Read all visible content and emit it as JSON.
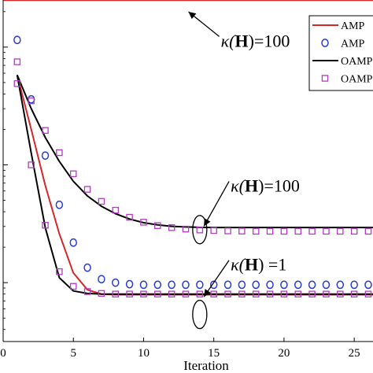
{
  "chart_data": {
    "type": "line",
    "title": "",
    "xlabel": "Iteration",
    "ylabel": "",
    "xlim": [
      0,
      27
    ],
    "ylim_log10": [
      -2.5,
      0.4
    ],
    "log_y": true,
    "x_ticks": [
      0,
      5,
      10,
      15,
      20,
      25
    ],
    "x_tick_labels": [
      "0",
      "5",
      "10",
      "15",
      "20",
      "25"
    ],
    "grid": false,
    "legend_position": "top-right",
    "legend": [
      {
        "label": "AMP",
        "style": "line",
        "color": "#d62728"
      },
      {
        "label": "AMP",
        "style": "circle",
        "color": "#2a3bd6"
      },
      {
        "label": "OAMP",
        "style": "line",
        "color": "#000000"
      },
      {
        "label": "OAMP",
        "style": "square",
        "color": "#b03cc0"
      }
    ],
    "annotations": [
      {
        "prefix": "κ(",
        "matrix": "H",
        "suffix": ")=100",
        "x": 15.5,
        "y_log10": 0.05,
        "pointer": {
          "x": 13.2,
          "y_log10": 0.3
        }
      },
      {
        "prefix": "κ(",
        "matrix": "H",
        "suffix": ")=100",
        "x": 16.2,
        "y_log10": -1.18,
        "pointer": {
          "x": 14.3,
          "y_log10": -1.52
        },
        "ellipse": {
          "x": 14,
          "y_log10": -1.55
        }
      },
      {
        "prefix": "κ(",
        "matrix": "H",
        "suffix": ") =1",
        "x": 16.2,
        "y_log10": -1.85,
        "pointer": {
          "x": 14.3,
          "y_log10": -2.12
        },
        "ellipse": {
          "x": 14,
          "y_log10": -2.27
        }
      }
    ],
    "series": [
      {
        "name": "AMP",
        "style": "line",
        "color": "#d62728",
        "x": [
          0,
          27
        ],
        "y": [
          2.5,
          2.5
        ]
      },
      {
        "name": "AMP",
        "style": "line",
        "color": "#d62728",
        "x": [
          1,
          2,
          3,
          4,
          5,
          6,
          7,
          8,
          9,
          10,
          11,
          12,
          13,
          14,
          15,
          16,
          17,
          18,
          19,
          20,
          21,
          22,
          23,
          24,
          25,
          26,
          27
        ],
        "y": [
          0.58,
          0.2,
          0.067,
          0.026,
          0.0121,
          0.0087,
          0.008,
          0.0079,
          0.0079,
          0.0079,
          0.0079,
          0.0079,
          0.0079,
          0.0079,
          0.0079,
          0.0079,
          0.0079,
          0.0079,
          0.0079,
          0.0079,
          0.0079,
          0.0079,
          0.0079,
          0.0079,
          0.0079,
          0.0079,
          0.0079
        ]
      },
      {
        "name": "AMP",
        "style": "circle",
        "color": "#2a3bd6",
        "x": [
          1,
          2,
          3,
          4,
          5,
          6,
          7,
          8,
          9,
          10,
          11,
          12,
          13,
          14,
          15,
          16,
          17,
          18,
          19,
          20,
          21,
          22,
          23,
          24,
          25,
          26,
          27
        ],
        "y": [
          1.15,
          0.36,
          0.12,
          0.0458,
          0.0219,
          0.0134,
          0.0107,
          0.01,
          0.0097,
          0.0096,
          0.0096,
          0.0096,
          0.0096,
          0.0096,
          0.0096,
          0.0096,
          0.0096,
          0.0096,
          0.0096,
          0.0096,
          0.0096,
          0.0096,
          0.0096,
          0.0096,
          0.0096,
          0.0096,
          0.0096
        ]
      },
      {
        "name": "OAMP",
        "style": "line",
        "color": "#000000",
        "x": [
          1,
          2,
          3,
          4,
          5,
          6,
          7,
          8,
          9,
          10,
          11,
          12,
          13,
          14,
          15,
          16,
          17,
          18,
          19,
          20,
          21,
          22,
          23,
          24,
          25,
          26,
          27
        ],
        "y": [
          0.58,
          0.3,
          0.171,
          0.107,
          0.0725,
          0.0545,
          0.0445,
          0.0385,
          0.0347,
          0.0323,
          0.0309,
          0.0301,
          0.0297,
          0.0295,
          0.0294,
          0.0294,
          0.0294,
          0.0294,
          0.0294,
          0.0294,
          0.0294,
          0.0294,
          0.0294,
          0.0294,
          0.0294,
          0.0294,
          0.0294
        ]
      },
      {
        "name": "OAMP",
        "style": "line",
        "color": "#000000",
        "x": [
          1,
          2,
          3,
          4,
          5,
          6,
          7,
          8,
          9,
          10,
          11,
          12,
          13,
          14,
          15,
          16,
          17,
          18,
          19,
          20,
          21,
          22,
          23,
          24,
          25,
          26,
          27
        ],
        "y": [
          0.58,
          0.126,
          0.0294,
          0.011,
          0.0085,
          0.0081,
          0.008,
          0.008,
          0.008,
          0.008,
          0.008,
          0.008,
          0.008,
          0.008,
          0.008,
          0.008,
          0.008,
          0.008,
          0.008,
          0.008,
          0.008,
          0.008,
          0.008,
          0.008,
          0.008,
          0.008,
          0.008
        ]
      },
      {
        "name": "OAMP",
        "style": "square",
        "color": "#b03cc0",
        "x": [
          1,
          2,
          3,
          4,
          5,
          6,
          7,
          8,
          9,
          10,
          11,
          12,
          13,
          14,
          15,
          16,
          17,
          18,
          19,
          20,
          21,
          22,
          23,
          24,
          25,
          26,
          27
        ],
        "y": [
          0.75,
          0.35,
          0.196,
          0.127,
          0.084,
          0.062,
          0.049,
          0.0412,
          0.0359,
          0.0326,
          0.0305,
          0.0293,
          0.0285,
          0.028,
          0.0277,
          0.0275,
          0.0274,
          0.0273,
          0.0273,
          0.0273,
          0.0273,
          0.0273,
          0.0273,
          0.0273,
          0.0273,
          0.0273,
          0.0273
        ]
      },
      {
        "name": "OAMP",
        "style": "square",
        "color": "#b03cc0",
        "x": [
          1,
          2,
          3,
          4,
          5,
          6,
          7,
          8,
          9,
          10,
          11,
          12,
          13,
          14,
          15,
          16,
          17,
          18,
          19,
          20,
          21,
          22,
          23,
          24,
          25,
          26,
          27
        ],
        "y": [
          0.49,
          0.1,
          0.0307,
          0.0124,
          0.0093,
          0.0084,
          0.0081,
          0.008,
          0.008,
          0.008,
          0.008,
          0.008,
          0.008,
          0.008,
          0.008,
          0.008,
          0.008,
          0.008,
          0.008,
          0.008,
          0.008,
          0.008,
          0.008,
          0.008,
          0.008,
          0.008,
          0.008
        ]
      }
    ]
  }
}
